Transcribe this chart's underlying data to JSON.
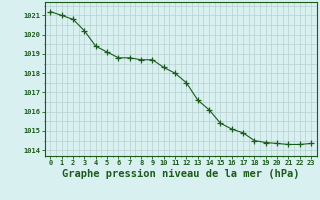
{
  "x": [
    0,
    1,
    2,
    3,
    4,
    5,
    6,
    7,
    8,
    9,
    10,
    11,
    12,
    13,
    14,
    15,
    16,
    17,
    18,
    19,
    20,
    21,
    22,
    23
  ],
  "y": [
    1021.2,
    1021.0,
    1020.8,
    1020.2,
    1019.4,
    1019.1,
    1018.8,
    1018.8,
    1018.7,
    1018.7,
    1018.3,
    1018.0,
    1017.5,
    1016.6,
    1016.1,
    1015.4,
    1015.1,
    1014.9,
    1014.5,
    1014.4,
    1014.35,
    1014.3,
    1014.3,
    1014.35
  ],
  "line_color": "#1a5c1a",
  "marker": "+",
  "marker_size": 4,
  "marker_color": "#1a5c1a",
  "bg_color": "#d8f0f0",
  "major_grid_color": "#c8dede",
  "minor_grid_color": "#c8dede",
  "axis_color": "#1a5c1a",
  "tick_color": "#1a5c1a",
  "label_color": "#1a5c1a",
  "xlabel": "Graphe pression niveau de la mer (hPa)",
  "xlabel_fontsize": 7.5,
  "ytick_labels": [
    "1014",
    "1015",
    "1016",
    "1017",
    "1018",
    "1019",
    "1020",
    "1021"
  ],
  "ylim": [
    1013.7,
    1021.7
  ],
  "xlim": [
    -0.5,
    23.5
  ],
  "xtick_labels": [
    "0",
    "1",
    "2",
    "3",
    "4",
    "5",
    "6",
    "7",
    "8",
    "9",
    "10",
    "11",
    "12",
    "13",
    "14",
    "15",
    "16",
    "17",
    "18",
    "19",
    "20",
    "21",
    "22",
    "23"
  ]
}
